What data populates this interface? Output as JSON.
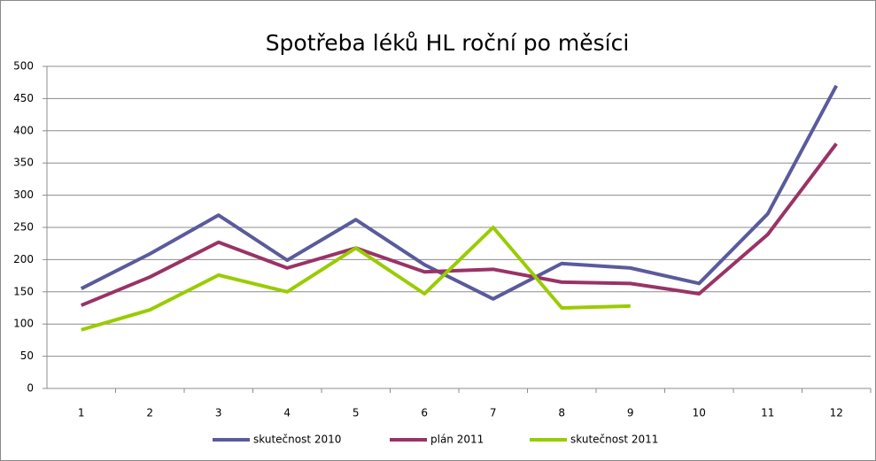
{
  "chart_data": {
    "type": "line",
    "title": "Spotřeba léků HL roční po měsíci",
    "categories": [
      "1",
      "2",
      "3",
      "4",
      "5",
      "6",
      "7",
      "8",
      "9",
      "10",
      "11",
      "12"
    ],
    "series": [
      {
        "name": "skutečnost 2010",
        "color": "#5a5a9c",
        "values": [
          155,
          209,
          269,
          199,
          262,
          192,
          139,
          194,
          187,
          163,
          271,
          470
        ]
      },
      {
        "name": "plán 2011",
        "color": "#993366",
        "values": [
          129,
          173,
          227,
          187,
          218,
          181,
          185,
          165,
          163,
          147,
          239,
          380
        ]
      },
      {
        "name": "skutečnost 2011",
        "color": "#99cc00",
        "values": [
          91,
          122,
          176,
          150,
          218,
          147,
          250,
          125,
          128,
          null,
          null,
          null
        ]
      }
    ],
    "ylim": [
      0,
      500
    ],
    "yticks": [
      0,
      50,
      100,
      150,
      200,
      250,
      300,
      350,
      400,
      450,
      500
    ],
    "grid": true,
    "legend": "bottom"
  }
}
